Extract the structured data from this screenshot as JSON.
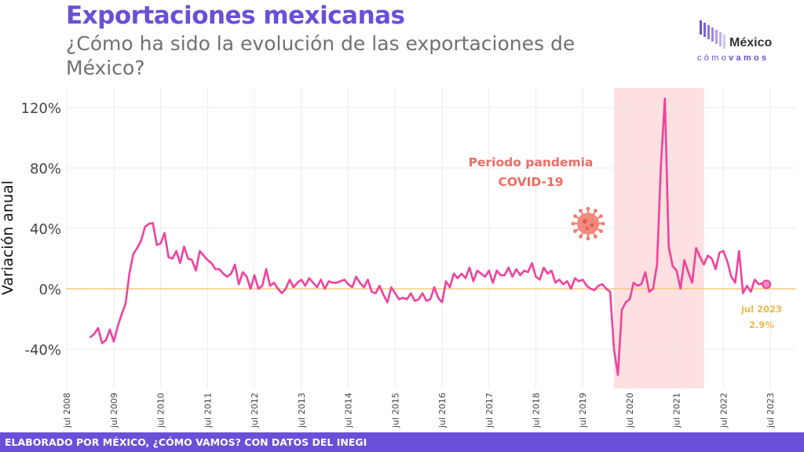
{
  "header": {
    "title": "Exportaciones mexicanas",
    "subtitle": "¿Cómo ha sido la evolución de las exportaciones de México?"
  },
  "logo": {
    "name": "México",
    "tagline_prefix": "cómo",
    "tagline_bold": "vamos",
    "icon": "bar-chart-logo-icon"
  },
  "footer": {
    "credit": "ELABORADO POR MÉXICO, ¿CÓMO VAMOS? CON DATOS DEL INEGI"
  },
  "colors": {
    "line": "#f2419d",
    "zero_line": "#f5c16c",
    "pandemic_band": "#fde0df",
    "pandemic_text": "#f06a62",
    "end_label": "#f3b94a",
    "accent": "#6a4fd8"
  },
  "chart_data": {
    "type": "line",
    "ylabel": "Variación anual",
    "ylim": [
      -66,
      133
    ],
    "yticks": [
      -40,
      0,
      40,
      80,
      120
    ],
    "ytick_labels": [
      "-40%",
      "0%",
      "40%",
      "80%",
      "120%"
    ],
    "xtick_labels": [
      "jul 2008",
      "jul 2009",
      "jul 2010",
      "jul 2011",
      "jul 2012",
      "jul 2013",
      "jul 2014",
      "jul 2015",
      "jul 2016",
      "jul 2017",
      "jul 2018",
      "jul 2019",
      "jul 2020",
      "jul 2021",
      "jul 2022",
      "jul 2023"
    ],
    "grid": true,
    "series": [
      {
        "start": "2009-01",
        "frequency": "monthly",
        "values": [
          -32,
          -30,
          -26,
          -36,
          -34,
          -27,
          -35,
          -25,
          -17,
          -10,
          10,
          23,
          27,
          32,
          41,
          43,
          43.5,
          29,
          30,
          37,
          21,
          20,
          25,
          17,
          28,
          20,
          19,
          12,
          25,
          22,
          19,
          17,
          13,
          13,
          10,
          8,
          10,
          16,
          3,
          11,
          8,
          0,
          9,
          0,
          2,
          13,
          2,
          4,
          0,
          -3,
          0,
          6,
          1,
          4,
          6,
          2,
          7,
          4,
          1,
          6,
          0,
          5,
          4,
          4,
          5,
          6,
          3,
          1,
          8,
          4,
          1,
          6,
          -2,
          -3,
          2,
          -4,
          -9,
          1,
          -3,
          -7,
          -6,
          -7,
          -3,
          -8,
          -7,
          -3,
          -8,
          -7,
          1,
          -6,
          -9,
          5,
          1,
          10,
          7,
          10,
          7,
          14,
          5,
          12,
          10,
          8,
          12,
          4,
          12,
          9,
          9,
          14,
          8,
          13,
          9,
          12,
          11,
          17,
          8,
          6,
          14,
          10,
          12,
          4,
          6,
          3,
          5,
          0,
          7,
          5,
          6,
          2,
          0,
          -1,
          2,
          3,
          0,
          -2,
          -40,
          -57,
          -14,
          -9,
          -7,
          4,
          2,
          3,
          11,
          -2,
          0,
          16,
          82,
          126,
          28,
          15,
          12,
          0,
          19,
          11,
          4,
          27,
          21,
          16,
          22,
          20,
          13,
          24,
          25,
          18,
          8,
          4,
          25,
          -3,
          2,
          -2,
          6,
          3,
          3.5,
          2.9
        ]
      }
    ],
    "pandemic_period": {
      "start": "2020-03",
      "end": "2022-02"
    },
    "annotations": {
      "pandemic_label_line1": "Periodo pandemia",
      "pandemic_label_line2": "COVID-19",
      "pandemic_icon": "coronavirus-icon",
      "end_label_date": "jul 2023",
      "end_label_value": "2.9%"
    }
  }
}
